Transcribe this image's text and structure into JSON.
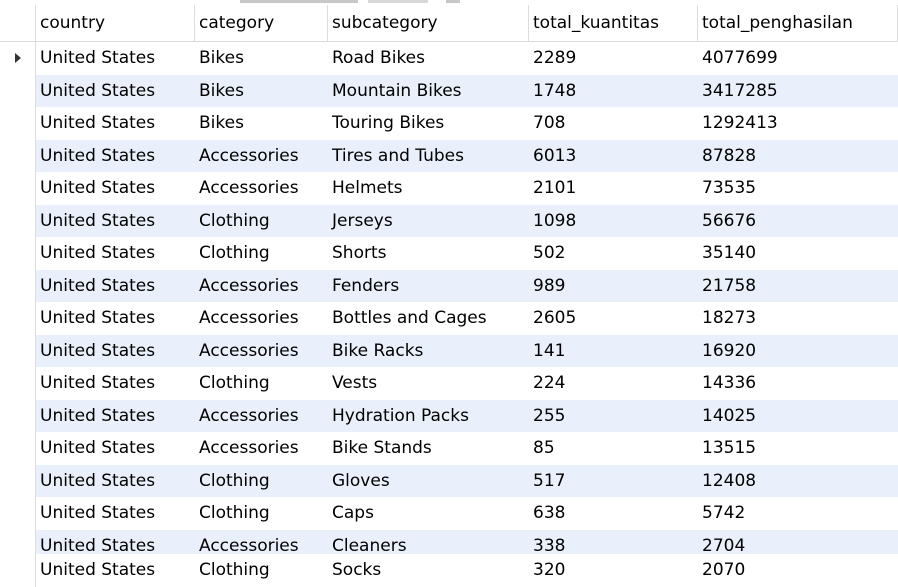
{
  "columns": [
    "country",
    "category",
    "subcategory",
    "total_kuantitas",
    "total_penghasilan"
  ],
  "rows": [
    [
      "United States",
      "Bikes",
      "Road Bikes",
      "2289",
      "4077699"
    ],
    [
      "United States",
      "Bikes",
      "Mountain Bikes",
      "1748",
      "3417285"
    ],
    [
      "United States",
      "Bikes",
      "Touring Bikes",
      "708",
      "1292413"
    ],
    [
      "United States",
      "Accessories",
      "Tires and Tubes",
      "6013",
      "87828"
    ],
    [
      "United States",
      "Accessories",
      "Helmets",
      "2101",
      "73535"
    ],
    [
      "United States",
      "Clothing",
      "Jerseys",
      "1098",
      "56676"
    ],
    [
      "United States",
      "Clothing",
      "Shorts",
      "502",
      "35140"
    ],
    [
      "United States",
      "Accessories",
      "Fenders",
      "989",
      "21758"
    ],
    [
      "United States",
      "Accessories",
      "Bottles and Cages",
      "2605",
      "18273"
    ],
    [
      "United States",
      "Accessories",
      "Bike Racks",
      "141",
      "16920"
    ],
    [
      "United States",
      "Clothing",
      "Vests",
      "224",
      "14336"
    ],
    [
      "United States",
      "Accessories",
      "Hydration Packs",
      "255",
      "14025"
    ],
    [
      "United States",
      "Accessories",
      "Bike Stands",
      "85",
      "13515"
    ],
    [
      "United States",
      "Clothing",
      "Gloves",
      "517",
      "12408"
    ],
    [
      "United States",
      "Clothing",
      "Caps",
      "638",
      "5742"
    ],
    [
      "United States",
      "Accessories",
      "Cleaners",
      "338",
      "2704"
    ]
  ],
  "partial_row": [
    "United States",
    "Clothing",
    "Socks",
    "320",
    "2070"
  ],
  "colors": {
    "alt_row": "#eaf0fb",
    "grid_line": "#dcdcdc"
  },
  "selected_row_indicator": "current-row-arrow-icon"
}
